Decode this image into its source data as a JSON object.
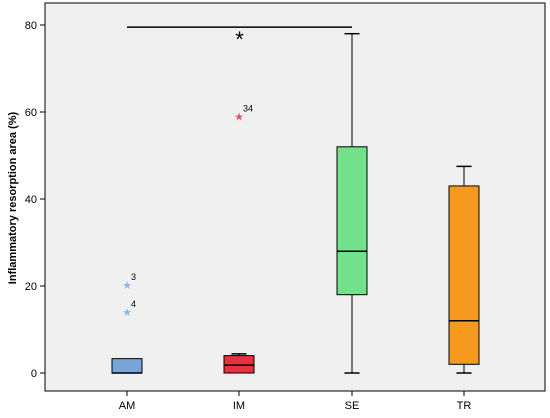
{
  "chart_data": {
    "type": "box",
    "ylabel": "Inflammatory resorption area (%)",
    "xlabel": "",
    "ylim": [
      -3,
      82
    ],
    "yticks": [
      0,
      20,
      40,
      60,
      80
    ],
    "categories": [
      "AM",
      "IM",
      "SE",
      "TR"
    ],
    "boxes": [
      {
        "category": "AM",
        "min": 0,
        "q1": 0,
        "median": 0,
        "q3": 3.3,
        "max": 3.3,
        "color": "#79a5d8",
        "outliers": [
          {
            "value": 20.2,
            "label": "3",
            "color": "#8fb7e3"
          },
          {
            "value": 14,
            "label": "4",
            "color": "#8fb7e3"
          }
        ]
      },
      {
        "category": "IM",
        "min": 0,
        "q1": 0,
        "median": 1.8,
        "q3": 4,
        "max": 4.4,
        "color": "#e8313f",
        "outliers": [
          {
            "value": 59,
            "label": "34",
            "color": "#e8525c"
          }
        ]
      },
      {
        "category": "SE",
        "min": 0,
        "q1": 18,
        "median": 28,
        "q3": 52,
        "max": 78,
        "color": "#73e08a",
        "outliers": []
      },
      {
        "category": "TR",
        "min": 0,
        "q1": 2,
        "median": 12,
        "q3": 43,
        "max": 47.5,
        "color": "#f6991f",
        "outliers": []
      }
    ],
    "annotations": [
      {
        "type": "significance-line",
        "from": "AM",
        "to": "SE",
        "y": 79.5,
        "text": "*"
      }
    ],
    "grid": false,
    "plot_background": "#f0f0f0"
  }
}
